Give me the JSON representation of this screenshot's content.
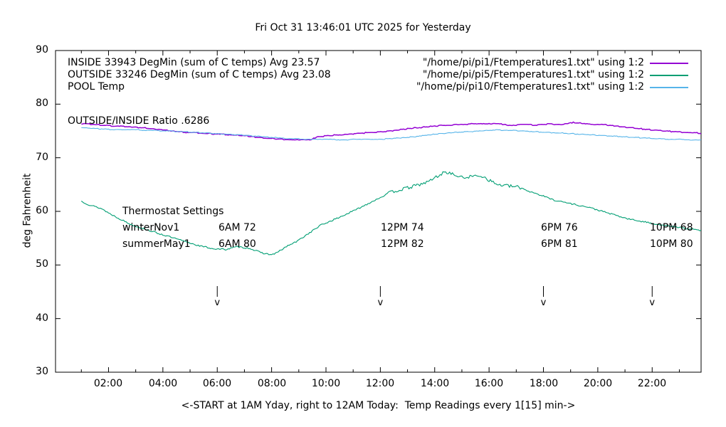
{
  "title": "Fri Oct 31 13:46:01 UTC 2025 for Yesterday",
  "ratio_label": "OUTSIDE/INSIDE Ratio .6286",
  "legend": {
    "rows": [
      {
        "label": "INSIDE 33943 DegMin (sum of C temps) Avg 23.57",
        "file": "\"/home/pi/pi1/Ftemperatures1.txt\" using 1:2",
        "color": "#9400d3"
      },
      {
        "label": "OUTSIDE 33246 DegMin (sum of C temps) Avg 23.08",
        "file": "\"/home/pi/pi5/Ftemperatures1.txt\" using 1:2",
        "color": "#009e73"
      },
      {
        "label": "POOL Temp",
        "file": "\"/home/pi/pi10/Ftemperatures1.txt\" using 1:2",
        "color": "#56b4e9"
      }
    ]
  },
  "thermostat": {
    "heading": "Thermostat Settings",
    "rows": [
      {
        "season": "winterNov1",
        "t6am": "6AM 72",
        "t12pm": "12PM 74",
        "t6pm": "6PM 76",
        "t10pm": "10PM 68"
      },
      {
        "season": "summerMay1",
        "t6am": "6AM 80",
        "t12pm": "12PM 82",
        "t6pm": "6PM 81",
        "t10pm": "10PM 80"
      }
    ]
  },
  "arrows": {
    "glyph": "v",
    "times": [
      6,
      12,
      18,
      22
    ]
  },
  "chart_data": {
    "type": "line",
    "title": "Fri Oct 31 13:46:01 UTC 2025 for Yesterday",
    "xlabel": "<-START at 1AM Yday, right to 12AM Today:  Temp Readings every 1[15] min->",
    "ylabel": "deg Fahrenheit",
    "xlim": [
      0.05,
      23.8
    ],
    "ylim": [
      30,
      90
    ],
    "grid": false,
    "legend_position": "inside-top",
    "y_ticks": [
      30,
      40,
      50,
      60,
      70,
      80,
      90
    ],
    "x_tick_times": [
      2,
      4,
      6,
      8,
      10,
      12,
      14,
      16,
      18,
      20,
      22
    ],
    "x_tick_labels": [
      "02:00",
      "04:00",
      "06:00",
      "08:00",
      "10:00",
      "12:00",
      "14:00",
      "16:00",
      "18:00",
      "20:00",
      "22:00"
    ],
    "x_ticks_minor": [
      1,
      3,
      5,
      7,
      9,
      11,
      13,
      15,
      17,
      19,
      21,
      23
    ],
    "series": [
      {
        "name": "INSIDE",
        "color": "#9400d3",
        "width": 1.5,
        "noise": 0.05,
        "quantize": 0.15,
        "seed": 7,
        "points": [
          [
            1,
            76.4
          ],
          [
            2,
            76.0
          ],
          [
            3,
            75.7
          ],
          [
            4,
            75.2
          ],
          [
            4.6,
            74.8
          ],
          [
            5,
            74.7
          ],
          [
            6,
            74.4
          ],
          [
            7,
            74.1
          ],
          [
            7.5,
            73.8
          ],
          [
            8,
            73.6
          ],
          [
            8.5,
            73.4
          ],
          [
            9.4,
            73.3
          ],
          [
            9.7,
            73.9
          ],
          [
            10.1,
            74.1
          ],
          [
            11.1,
            74.5
          ],
          [
            12.2,
            74.9
          ],
          [
            13.2,
            75.5
          ],
          [
            14.2,
            76.0
          ],
          [
            15.3,
            76.3
          ],
          [
            16.3,
            76.4
          ],
          [
            16.8,
            76.0
          ],
          [
            17.2,
            76.2
          ],
          [
            17.7,
            76.1
          ],
          [
            18.2,
            76.3
          ],
          [
            18.7,
            76.2
          ],
          [
            19.1,
            76.6
          ],
          [
            19.6,
            76.3
          ],
          [
            20.2,
            76.2
          ],
          [
            21,
            75.7
          ],
          [
            22,
            75.2
          ],
          [
            23,
            74.8
          ],
          [
            23.8,
            74.6
          ]
        ]
      },
      {
        "name": "OUTSIDE",
        "color": "#009e73",
        "width": 1.1,
        "noise": 0.14,
        "quantize": 0,
        "seed": 13,
        "points": [
          [
            1,
            61.9
          ],
          [
            1.3,
            61.2
          ],
          [
            1.75,
            60.5
          ],
          [
            2,
            59.7
          ],
          [
            2.8,
            57.6
          ],
          [
            3.7,
            56.1
          ],
          [
            4.6,
            54.7
          ],
          [
            5.4,
            53.5
          ],
          [
            5.9,
            53.0
          ],
          [
            6.3,
            52.9
          ],
          [
            6.75,
            53.4
          ],
          [
            7.2,
            53.1
          ],
          [
            7.6,
            52.3
          ],
          [
            8,
            51.9
          ],
          [
            8.2,
            52.3
          ],
          [
            8.6,
            53.6
          ],
          [
            8.9,
            54.3
          ],
          [
            9.8,
            57.4
          ],
          [
            10.5,
            58.9
          ],
          [
            11.1,
            60.3
          ],
          [
            11.8,
            62.1
          ],
          [
            12.4,
            63.6
          ],
          [
            13.1,
            64.5
          ],
          [
            13.7,
            65.4
          ],
          [
            14.4,
            67.4
          ],
          [
            15,
            66.3
          ],
          [
            15.7,
            66.7
          ],
          [
            16.3,
            65.0
          ],
          [
            17.1,
            64.5
          ],
          [
            18.4,
            62.1
          ],
          [
            19.7,
            60.7
          ],
          [
            21.1,
            58.6
          ],
          [
            22.4,
            57.4
          ],
          [
            23.7,
            56.5
          ],
          [
            23.8,
            56.4
          ]
        ]
      },
      {
        "name": "POOL",
        "color": "#56b4e9",
        "width": 1.1,
        "noise": 0.05,
        "quantize": 0.12,
        "seed": 21,
        "points": [
          [
            1,
            75.6
          ],
          [
            2,
            75.3
          ],
          [
            3,
            75.2
          ],
          [
            3.7,
            75.1
          ],
          [
            4.6,
            74.9
          ],
          [
            5,
            74.8
          ],
          [
            6,
            74.5
          ],
          [
            7,
            74.2
          ],
          [
            7.5,
            74.0
          ],
          [
            8,
            73.8
          ],
          [
            8.5,
            73.6
          ],
          [
            9,
            73.5
          ],
          [
            9.5,
            73.45
          ],
          [
            10.1,
            73.4
          ],
          [
            10.6,
            73.35
          ],
          [
            11.1,
            73.4
          ],
          [
            12.2,
            73.5
          ],
          [
            13.2,
            73.9
          ],
          [
            14.2,
            74.5
          ],
          [
            15.3,
            74.9
          ],
          [
            16.3,
            75.2
          ],
          [
            16.9,
            75.1
          ],
          [
            17.9,
            74.8
          ],
          [
            19,
            74.5
          ],
          [
            20,
            74.2
          ],
          [
            21,
            73.9
          ],
          [
            22,
            73.6
          ],
          [
            23,
            73.4
          ],
          [
            23.8,
            73.3
          ]
        ]
      }
    ]
  }
}
